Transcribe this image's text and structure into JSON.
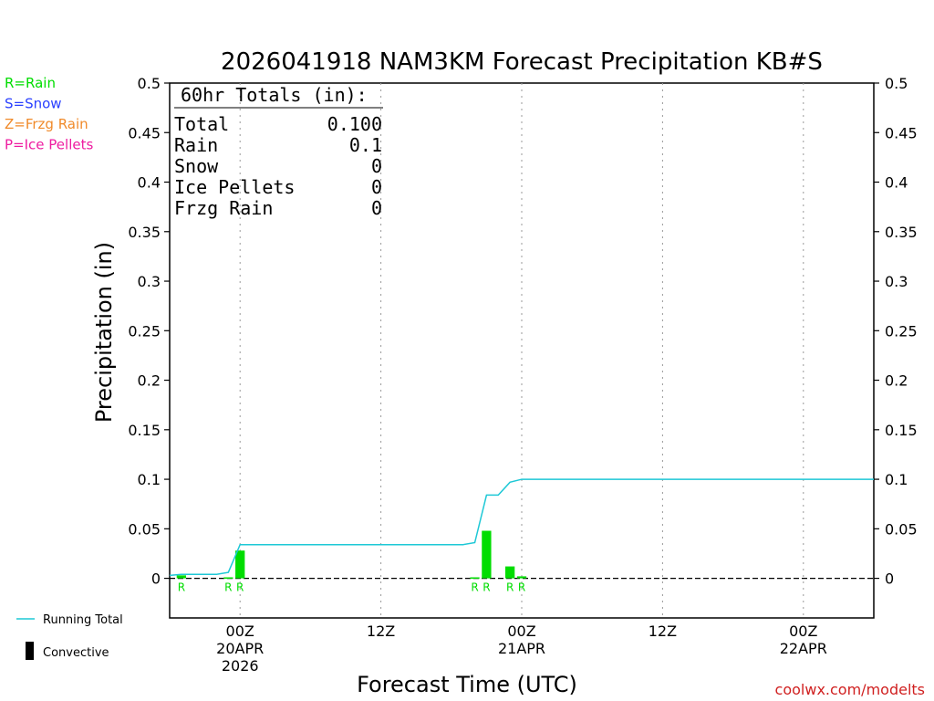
{
  "colors": {
    "rain": "#00dd00",
    "snow": "#2a40ff",
    "frzg_rain": "#f08a2a",
    "ice_pellets": "#ee1ca0",
    "running_total": "#1ec8d6",
    "convective": "#000000",
    "credit": "#d02020"
  },
  "legend": {
    "types": [
      {
        "label": "R=Rain",
        "color_key": "rain"
      },
      {
        "label": "S=Snow",
        "color_key": "snow"
      },
      {
        "label": "Z=Frzg Rain",
        "color_key": "frzg_rain"
      },
      {
        "label": "P=Ice Pellets",
        "color_key": "ice_pellets"
      }
    ],
    "running_total": "Running Total",
    "convective": "Convective"
  },
  "totals": {
    "header": "60hr Totals (in):",
    "rows": [
      {
        "label": "Total",
        "value": "0.100"
      },
      {
        "label": "Rain",
        "value": "0.1"
      },
      {
        "label": "Snow",
        "value": "0"
      },
      {
        "label": "Ice Pellets",
        "value": "0"
      },
      {
        "label": "Frzg Rain",
        "value": "0"
      }
    ]
  },
  "credit": "coolwx.com/modelts",
  "chart_data": {
    "type": "bar",
    "title": "2026041918 NAM3KM Forecast Precipitation KB#S",
    "xlabel": "Forecast Time (UTC)",
    "ylabel": "Precipitation (in)",
    "ylim": [
      -0.04,
      0.5
    ],
    "y_ticks": [
      "0",
      "0.05",
      "0.1",
      "0.15",
      "0.2",
      "0.25",
      "0.3",
      "0.35",
      "0.4",
      "0.45",
      "0.5"
    ],
    "x_unit": "forecast hour",
    "xlim": [
      0,
      60
    ],
    "x_ticks": [
      {
        "hour": 6,
        "lines": [
          "00Z",
          "20APR",
          "2026"
        ]
      },
      {
        "hour": 18,
        "lines": [
          "12Z"
        ]
      },
      {
        "hour": 30,
        "lines": [
          "00Z",
          "21APR"
        ]
      },
      {
        "hour": 42,
        "lines": [
          "12Z"
        ]
      },
      {
        "hour": 54,
        "lines": [
          "00Z",
          "22APR"
        ]
      }
    ],
    "grid": "vertical dotted at 00Z/12Z",
    "bars": [
      {
        "hour": 1,
        "value": 0.003,
        "type": "R"
      },
      {
        "hour": 5,
        "value": 0.001,
        "type": "R"
      },
      {
        "hour": 6,
        "value": 0.028,
        "type": "R"
      },
      {
        "hour": 26,
        "value": 0.001,
        "type": "R"
      },
      {
        "hour": 27,
        "value": 0.048,
        "type": "R"
      },
      {
        "hour": 29,
        "value": 0.012,
        "type": "R"
      },
      {
        "hour": 30,
        "value": 0.002,
        "type": "R"
      }
    ],
    "running_total": {
      "x": [
        0,
        1,
        4,
        5,
        6,
        25,
        26,
        27,
        28,
        29,
        30,
        60
      ],
      "y": [
        0.003,
        0.004,
        0.004,
        0.006,
        0.034,
        0.034,
        0.036,
        0.084,
        0.084,
        0.097,
        0.1,
        0.1
      ]
    }
  }
}
